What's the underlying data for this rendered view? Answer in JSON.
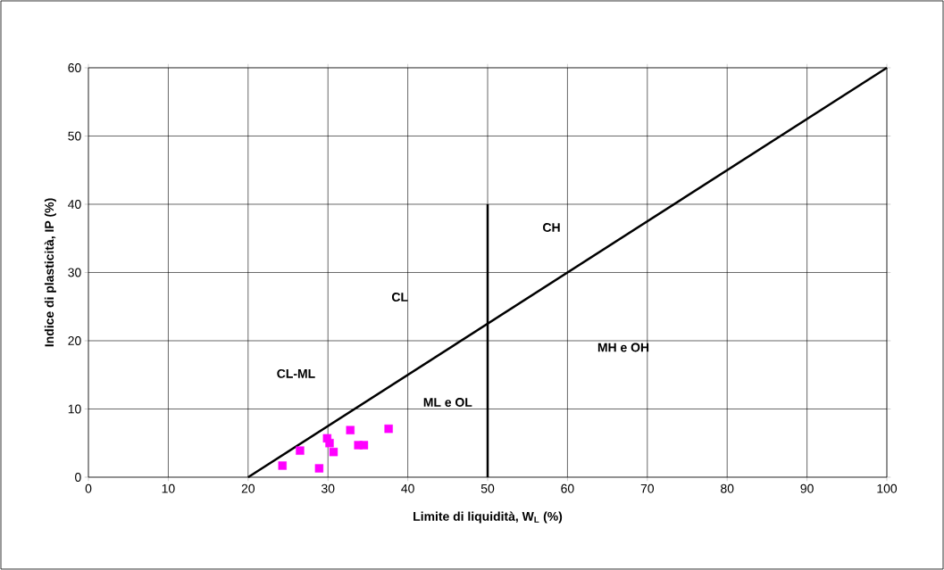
{
  "chart_data": {
    "type": "scatter",
    "xlabel": "Limite di liquidità, W$_{L}$  (%)",
    "ylabel": "Indice di plasticità, IP (%)",
    "xlim": [
      0,
      100
    ],
    "ylim": [
      0,
      60
    ],
    "xticks": [
      0,
      10,
      20,
      30,
      40,
      50,
      60,
      70,
      80,
      90,
      100
    ],
    "yticks": [
      0,
      10,
      20,
      30,
      40,
      50,
      60
    ],
    "grid": true,
    "series": [
      {
        "marker": "square",
        "color": "#ff00ff",
        "x": [
          24.3,
          26.5,
          28.9,
          29.9,
          30.2,
          30.7,
          32.8,
          33.8,
          34.5,
          37.6
        ],
        "values": [
          1.7,
          3.9,
          1.3,
          5.7,
          5.0,
          3.7,
          6.9,
          4.7,
          4.7,
          7.1
        ]
      },
      {
        "type": "line",
        "color": "#000000",
        "x": [
          20,
          100
        ],
        "values": [
          0,
          60
        ]
      },
      {
        "type": "line",
        "color": "#000000",
        "x": [
          50,
          50
        ],
        "values": [
          0,
          40
        ]
      }
    ],
    "annotations": [
      "CL-ML",
      "CL",
      "CH",
      "MH e OH",
      "ML e OL"
    ]
  }
}
